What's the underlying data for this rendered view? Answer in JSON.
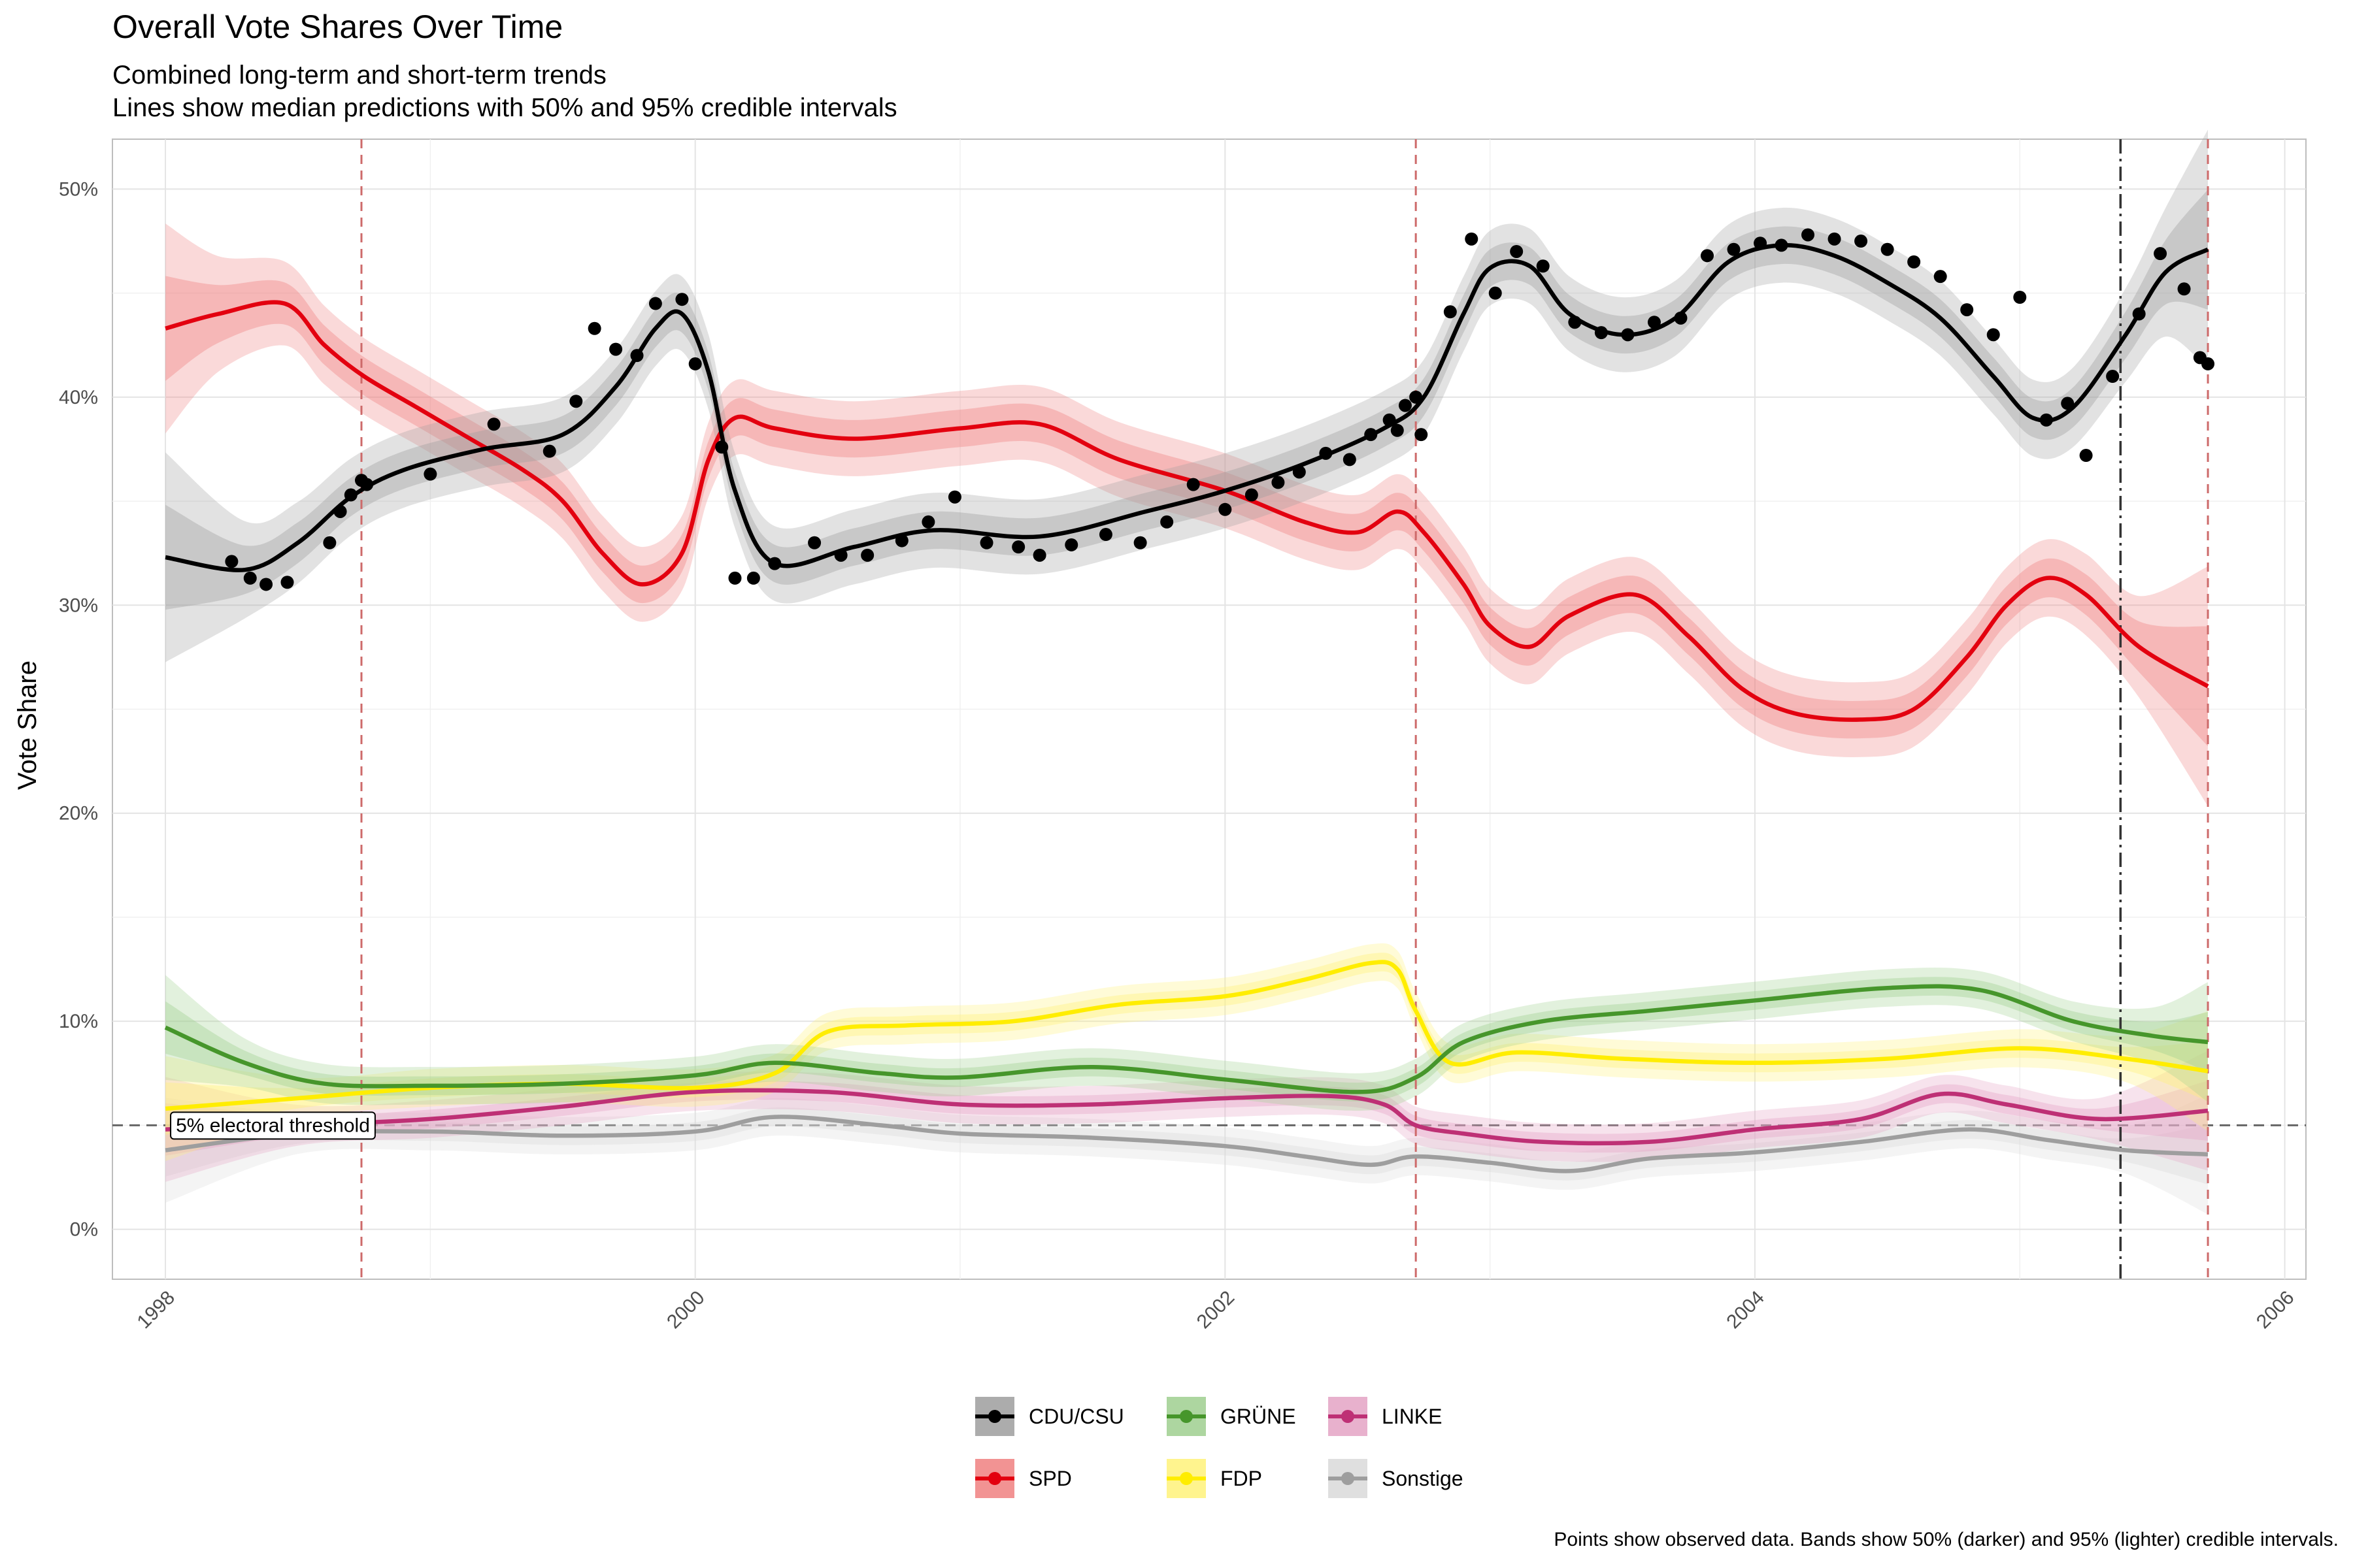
{
  "title": "Overall Vote Shares Over Time",
  "subtitle_lines": [
    "Combined long-term and short-term trends",
    "Lines show median predictions with 50% and 95% credible intervals"
  ],
  "caption": "Points show observed data. Bands show 50% (darker) and 95% (lighter) credible intervals.",
  "chart_data": {
    "type": "line",
    "title": "Overall Vote Shares Over Time",
    "xlabel": "",
    "ylabel": "Vote Share",
    "xlim": [
      1997.8,
      2006.08
    ],
    "ylim": [
      -2.4,
      52.4
    ],
    "x_ticks": [
      1998,
      2000,
      2002,
      2004,
      2006
    ],
    "y_ticks": [
      0,
      10,
      20,
      30,
      40,
      50
    ],
    "y_tick_labels": [
      "0%",
      "10%",
      "20%",
      "30%",
      "40%",
      "50%"
    ],
    "grid": true,
    "legend_position": "bottom",
    "threshold": {
      "y": 5,
      "label": "5% electoral threshold"
    },
    "election_lines": [
      1998.74,
      2002.72,
      2005.71
    ],
    "cutoff_line": 2005.38,
    "series": [
      {
        "name": "CDU/CSU",
        "color": "#000000",
        "band_color": "#9e9e9e",
        "x": [
          1998.0,
          1998.3,
          1998.5,
          1998.7,
          1998.9,
          1999.2,
          1999.5,
          1999.7,
          1999.85,
          1999.95,
          2000.05,
          2000.15,
          2000.3,
          2000.6,
          2000.9,
          2001.3,
          2001.7,
          2002.0,
          2002.3,
          2002.6,
          2002.75,
          2002.9,
          2003.0,
          2003.15,
          2003.3,
          2003.5,
          2003.7,
          2003.9,
          2004.1,
          2004.3,
          2004.5,
          2004.7,
          2004.9,
          2005.05,
          2005.2,
          2005.4,
          2005.55,
          2005.71
        ],
        "values": [
          32.3,
          31.7,
          33.0,
          35.2,
          36.5,
          37.5,
          38.2,
          40.5,
          43.3,
          44.0,
          41.2,
          35.5,
          32.0,
          32.8,
          33.6,
          33.3,
          34.5,
          35.5,
          36.8,
          38.5,
          40.0,
          44.0,
          46.2,
          46.3,
          44.0,
          43.0,
          43.8,
          46.5,
          47.3,
          46.8,
          45.5,
          43.8,
          41.0,
          39.0,
          39.5,
          43.0,
          46.0,
          47.1
        ],
        "points_x": [
          1998.25,
          1998.32,
          1998.38,
          1998.46,
          1998.62,
          1998.66,
          1998.7,
          1998.74,
          1998.76,
          1999.0,
          1999.24,
          1999.45,
          1999.55,
          1999.62,
          1999.7,
          1999.78,
          1999.85,
          1999.95,
          2000.0,
          2000.1,
          2000.15,
          2000.22,
          2000.3,
          2000.45,
          2000.55,
          2000.65,
          2000.78,
          2000.88,
          2000.98,
          2001.1,
          2001.22,
          2001.3,
          2001.42,
          2001.55,
          2001.68,
          2001.78,
          2001.88,
          2002.0,
          2002.1,
          2002.2,
          2002.28,
          2002.38,
          2002.47,
          2002.55,
          2002.62,
          2002.65,
          2002.68,
          2002.72,
          2002.74,
          2002.85,
          2002.93,
          2003.02,
          2003.1,
          2003.2,
          2003.32,
          2003.42,
          2003.52,
          2003.62,
          2003.72,
          2003.82,
          2003.92,
          2004.02,
          2004.1,
          2004.2,
          2004.3,
          2004.4,
          2004.5,
          2004.6,
          2004.7,
          2004.8,
          2004.9,
          2005.0,
          2005.1,
          2005.18,
          2005.25,
          2005.35,
          2005.45,
          2005.53,
          2005.62,
          2005.68,
          2005.71
        ],
        "points_y": [
          32.1,
          31.3,
          31.0,
          31.1,
          33.0,
          34.5,
          35.3,
          36.0,
          35.8,
          36.3,
          38.7,
          37.4,
          39.8,
          43.3,
          42.3,
          42.0,
          44.5,
          44.7,
          41.6,
          37.6,
          31.3,
          31.3,
          32.0,
          33.0,
          32.4,
          32.4,
          33.1,
          34.0,
          35.2,
          33.0,
          32.8,
          32.4,
          32.9,
          33.4,
          33.0,
          34.0,
          35.8,
          34.6,
          35.3,
          35.9,
          36.4,
          37.3,
          37.0,
          38.2,
          38.9,
          38.4,
          39.6,
          40.0,
          38.2,
          44.1,
          47.6,
          45.0,
          47.0,
          46.3,
          43.6,
          43.1,
          43.0,
          43.6,
          43.8,
          46.8,
          47.1,
          47.4,
          47.3,
          47.8,
          47.6,
          47.5,
          47.1,
          46.5,
          45.8,
          44.2,
          43.0,
          44.8,
          38.9,
          39.7,
          37.2,
          41.0,
          44.0,
          46.9,
          45.2,
          41.9,
          41.6
        ]
      },
      {
        "name": "SPD",
        "color": "#e3000f",
        "band_color": "#f08080",
        "x": [
          1998.0,
          1998.2,
          1998.45,
          1998.6,
          1998.75,
          1998.95,
          1999.15,
          1999.35,
          1999.5,
          1999.65,
          1999.8,
          1999.95,
          2000.05,
          2000.15,
          2000.3,
          2000.6,
          2001.0,
          2001.3,
          2001.6,
          2002.0,
          2002.3,
          2002.5,
          2002.65,
          2002.75,
          2002.9,
          2003.0,
          2003.15,
          2003.3,
          2003.55,
          2003.75,
          2003.95,
          2004.15,
          2004.4,
          2004.6,
          2004.8,
          2004.95,
          2005.1,
          2005.25,
          2005.45,
          2005.71
        ],
        "values": [
          43.3,
          44.0,
          44.5,
          42.5,
          41.0,
          39.5,
          38.0,
          36.5,
          35.0,
          32.5,
          31.0,
          32.5,
          37.0,
          39.0,
          38.5,
          38.0,
          38.5,
          38.7,
          37.0,
          35.5,
          34.0,
          33.5,
          34.5,
          33.5,
          31.0,
          29.0,
          28.0,
          29.5,
          30.5,
          28.5,
          26.0,
          24.8,
          24.5,
          25.0,
          27.5,
          30.0,
          31.3,
          30.5,
          28.0,
          26.1
        ]
      },
      {
        "name": "GRÜNE",
        "color": "#46962b",
        "band_color": "#9fcf8f",
        "x": [
          1998.0,
          1998.3,
          1998.6,
          1999.0,
          1999.5,
          2000.0,
          2000.3,
          2000.7,
          2001.0,
          2001.5,
          2002.0,
          2002.5,
          2002.72,
          2002.9,
          2003.2,
          2003.6,
          2004.0,
          2004.5,
          2004.85,
          2005.2,
          2005.5,
          2005.71
        ],
        "values": [
          9.7,
          8.0,
          7.0,
          6.9,
          7.0,
          7.4,
          8.0,
          7.5,
          7.3,
          7.8,
          7.2,
          6.6,
          7.3,
          9.0,
          10.0,
          10.5,
          11.0,
          11.6,
          11.5,
          10.0,
          9.3,
          9.0
        ]
      },
      {
        "name": "FDP",
        "color": "#ffed00",
        "band_color": "#fff27a",
        "x": [
          1998.0,
          1998.5,
          1999.0,
          1999.5,
          2000.0,
          2000.3,
          2000.5,
          2000.8,
          2001.2,
          2001.6,
          2002.0,
          2002.3,
          2002.55,
          2002.65,
          2002.72,
          2002.85,
          2003.1,
          2003.5,
          2004.0,
          2004.5,
          2005.0,
          2005.4,
          2005.71
        ],
        "values": [
          5.8,
          6.3,
          6.8,
          7.0,
          6.8,
          7.5,
          9.5,
          9.8,
          10.0,
          10.8,
          11.2,
          12.0,
          12.8,
          12.5,
          10.5,
          8.0,
          8.5,
          8.2,
          8.0,
          8.2,
          8.7,
          8.2,
          7.6
        ]
      },
      {
        "name": "LINKE",
        "color": "#be3075",
        "band_color": "#e4a3c4",
        "x": [
          1998.0,
          1998.5,
          1999.0,
          1999.5,
          2000.0,
          2000.5,
          2001.0,
          2001.5,
          2002.0,
          2002.4,
          2002.6,
          2002.72,
          2002.9,
          2003.2,
          2003.6,
          2004.0,
          2004.4,
          2004.7,
          2004.95,
          2005.3,
          2005.71
        ],
        "values": [
          4.8,
          5.0,
          5.3,
          5.9,
          6.6,
          6.6,
          6.0,
          6.0,
          6.3,
          6.4,
          6.0,
          5.0,
          4.6,
          4.2,
          4.2,
          4.8,
          5.3,
          6.5,
          6.0,
          5.3,
          5.7
        ]
      },
      {
        "name": "Sonstige",
        "color": "#9e9e9e",
        "band_color": "#d9d9d9",
        "x": [
          1998.0,
          1998.5,
          1999.0,
          1999.5,
          2000.0,
          2000.3,
          2000.7,
          2001.0,
          2001.5,
          2002.0,
          2002.3,
          2002.55,
          2002.72,
          2003.0,
          2003.3,
          2003.6,
          2004.0,
          2004.4,
          2004.8,
          2005.1,
          2005.4,
          2005.71
        ],
        "values": [
          3.8,
          4.6,
          4.7,
          4.5,
          4.7,
          5.4,
          5.0,
          4.6,
          4.4,
          4.0,
          3.5,
          3.1,
          3.5,
          3.2,
          2.8,
          3.4,
          3.7,
          4.2,
          4.8,
          4.3,
          3.8,
          3.6
        ]
      }
    ]
  }
}
